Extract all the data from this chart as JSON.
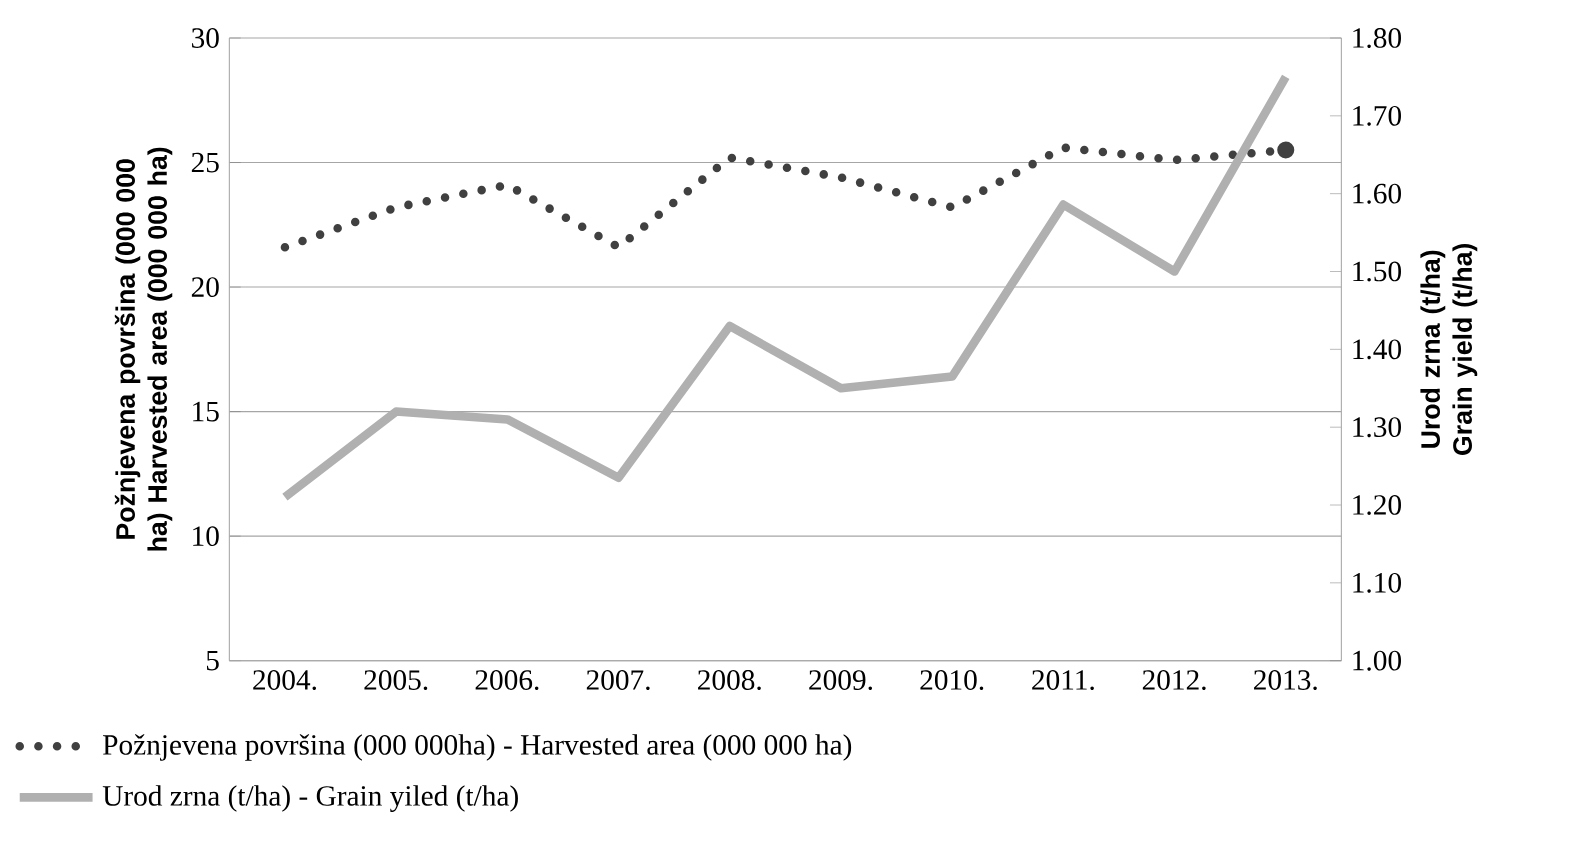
{
  "chart_data": {
    "type": "line",
    "categories": [
      "2004.",
      "2005.",
      "2006.",
      "2007.",
      "2008.",
      "2009.",
      "2010.",
      "2011.",
      "2012.",
      "2013."
    ],
    "ylabel": "Požnjevena površina (000 000 ha) Harvested area (000 000 ha)",
    "y2label": "Urod zrna (t/ha) Grain yield (t/ha)",
    "ylim": [
      5,
      30
    ],
    "yticks": [
      5,
      10,
      15,
      20,
      25,
      30
    ],
    "y2lim": [
      1.0,
      1.8
    ],
    "y2ticks": [
      {
        "value": 1.0,
        "label": "1.00"
      },
      {
        "value": 1.1,
        "label": "1.10"
      },
      {
        "value": 1.2,
        "label": "1.20"
      },
      {
        "value": 1.3,
        "label": "1.30"
      },
      {
        "value": 1.4,
        "label": "1.40"
      },
      {
        "value": 1.5,
        "label": "1.50"
      },
      {
        "value": 1.6,
        "label": "1.60"
      },
      {
        "value": 1.7,
        "label": "1.70"
      },
      {
        "value": 1.8,
        "label": "1.80"
      }
    ],
    "grid": "y",
    "legend": "bottom",
    "marker": "none",
    "series": [
      {
        "name": "Požnjevena površina (000 000ha) - Harvested area (000 000 ha)",
        "color": "#404040",
        "line_style": "dotted",
        "values": [
          21.6,
          23.2,
          24.1,
          21.6,
          25.2,
          24.4,
          23.2,
          25.6,
          25.1,
          25.5
        ]
      },
      {
        "name": "Urod zrna (t/ha) - Grain yiled (t/ha)",
        "color": "#b0b0b0",
        "line_style": "solid",
        "axis": "y2",
        "values": [
          1.21,
          1.32,
          1.31,
          1.235,
          1.43,
          1.35,
          1.365,
          1.586,
          1.5,
          1.75
        ]
      }
    ]
  }
}
